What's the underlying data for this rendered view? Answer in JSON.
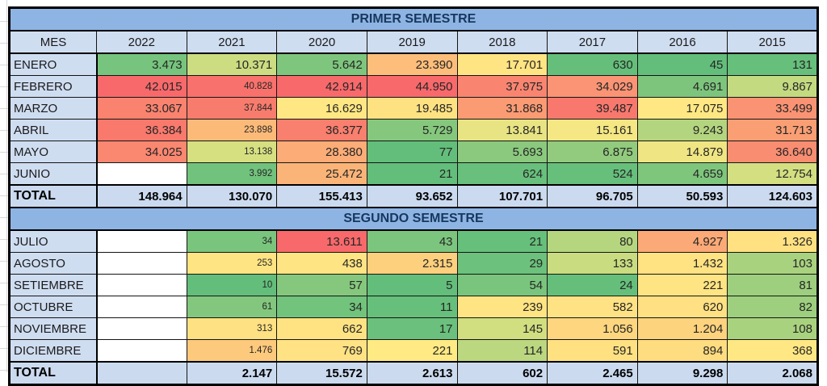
{
  "palette": {
    "band_bg": "#8EB4E3",
    "band_text": "#17375D",
    "header_bg": "#CFDDF1",
    "month_bg": "#CFDDF1",
    "total_bg": "#CBDAEF",
    "empty_bg": "#FFFFFF",
    "border": "#000000"
  },
  "table": {
    "columns": [
      "MES",
      "2022",
      "2021",
      "2020",
      "2019",
      "2018",
      "2017",
      "2016",
      "2015"
    ],
    "sections": [
      {
        "title": "PRIMER SEMESTRE",
        "rows": [
          {
            "label": "ENERO",
            "values": [
              "3.473",
              "10.371",
              "5.642",
              "23.390",
              "17.701",
              "630",
              "45",
              "131"
            ],
            "colors": [
              "#76C47D",
              "#CBDC81",
              "#7EC67D",
              "#FCBE7A",
              "#FFE483",
              "#65BF7B",
              "#63BE7B",
              "#66BF7B"
            ],
            "small": []
          },
          {
            "label": "FEBRERO",
            "values": [
              "42.015",
              "40.828",
              "42.914",
              "44.950",
              "37.975",
              "34.029",
              "4.691",
              "9.867"
            ],
            "colors": [
              "#F8696B",
              "#F8716C",
              "#F8696B",
              "#F8696B",
              "#F98571",
              "#FA9474",
              "#7DC57D",
              "#C3DA80"
            ],
            "small": [
              1
            ]
          },
          {
            "label": "MARZO",
            "values": [
              "33.067",
              "37.844",
              "16.629",
              "19.485",
              "31.868",
              "39.487",
              "17.075",
              "33.499"
            ],
            "colors": [
              "#F9836F",
              "#F87C6D",
              "#FFE883",
              "#FEE282",
              "#FA9B74",
              "#F8786D",
              "#FFE883",
              "#FA9373"
            ],
            "small": [
              1
            ]
          },
          {
            "label": "ABRIL",
            "values": [
              "36.384",
              "23.898",
              "36.377",
              "5.729",
              "13.841",
              "15.161",
              "9.243",
              "31.713"
            ],
            "colors": [
              "#F9796D",
              "#FCBA79",
              "#F97F6E",
              "#85C87D",
              "#E9E483",
              "#F4E784",
              "#B4D57F",
              "#FA9E74"
            ],
            "small": [
              1
            ]
          },
          {
            "label": "MAYO",
            "values": [
              "34.025",
              "13.138",
              "28.380",
              "77",
              "5.693",
              "6.875",
              "14.879",
              "36.640"
            ],
            "colors": [
              "#FA8770",
              "#D6E081",
              "#FBAC77",
              "#63BE7B",
              "#8BC97E",
              "#92CB7E",
              "#EFE683",
              "#F98D71"
            ],
            "small": [
              1
            ]
          },
          {
            "label": "JUNIO",
            "values": [
              "",
              "3.992",
              "25.472",
              "21",
              "624",
              "524",
              "4.659",
              "12.754"
            ],
            "colors": [
              null,
              "#71C27C",
              "#FBB478",
              "#63BE7B",
              "#68C07C",
              "#66BF7B",
              "#7FC67D",
              "#D3DF81"
            ],
            "small": [
              1
            ]
          }
        ],
        "total": {
          "label": "TOTAL",
          "values": [
            "148.964",
            "130.070",
            "155.413",
            "93.652",
            "107.701",
            "96.705",
            "50.593",
            "124.603"
          ]
        }
      },
      {
        "title": "SEGUNDO SEMESTRE",
        "rows": [
          {
            "label": "JULIO",
            "values": [
              "",
              "34",
              "13.611",
              "43",
              "21",
              "80",
              "4.927",
              "1.326"
            ],
            "colors": [
              null,
              "#79C57D",
              "#F8696B",
              "#7CC57E",
              "#66BF7B",
              "#B5D67F",
              "#FBA977",
              "#FFE182"
            ],
            "small": [
              1
            ]
          },
          {
            "label": "AGOSTO",
            "values": [
              "",
              "253",
              "438",
              "2.315",
              "29",
              "133",
              "1.432",
              "103"
            ],
            "colors": [
              null,
              "#FEE482",
              "#FFE483",
              "#FDD07D",
              "#6CC17C",
              "#C9DC80",
              "#FFE282",
              "#A9D27F"
            ],
            "small": [
              1
            ]
          },
          {
            "label": "SETIEMBRE",
            "values": [
              "",
              "10",
              "57",
              "5",
              "54",
              "24",
              "221",
              "81"
            ],
            "colors": [
              null,
              "#63BE7B",
              "#85C87D",
              "#63BE7B",
              "#79C57D",
              "#65BF7B",
              "#FEE482",
              "#9DCF7E"
            ],
            "small": [
              1
            ]
          },
          {
            "label": "OCTUBRE",
            "values": [
              "",
              "61",
              "34",
              "11",
              "239",
              "582",
              "620",
              "82"
            ],
            "colors": [
              null,
              "#82C77D",
              "#72C37C",
              "#66BF7B",
              "#FEE482",
              "#FFE283",
              "#FFE082",
              "#9DCF7E"
            ],
            "small": [
              1
            ]
          },
          {
            "label": "NOVIEMBRE",
            "values": [
              "",
              "313",
              "662",
              "17",
              "145",
              "1.056",
              "1.204",
              "108"
            ],
            "colors": [
              null,
              "#FEE182",
              "#FFE383",
              "#6AC07C",
              "#D2DF81",
              "#FDD67F",
              "#FDD37E",
              "#A9D27F"
            ],
            "small": [
              1
            ]
          },
          {
            "label": "DICIEMBRE",
            "values": [
              "",
              "1.476",
              "769",
              "221",
              "114",
              "591",
              "894",
              "368"
            ],
            "colors": [
              null,
              "#FDC97C",
              "#FFE283",
              "#FFEA84",
              "#BBD780",
              "#FFE182",
              "#FEDC80",
              "#FFE883"
            ],
            "small": [
              1
            ]
          }
        ],
        "total": {
          "label": "TOTAL",
          "values": [
            "",
            "2.147",
            "15.572",
            "2.613",
            "602",
            "2.465",
            "9.298",
            "2.068"
          ]
        }
      }
    ]
  }
}
